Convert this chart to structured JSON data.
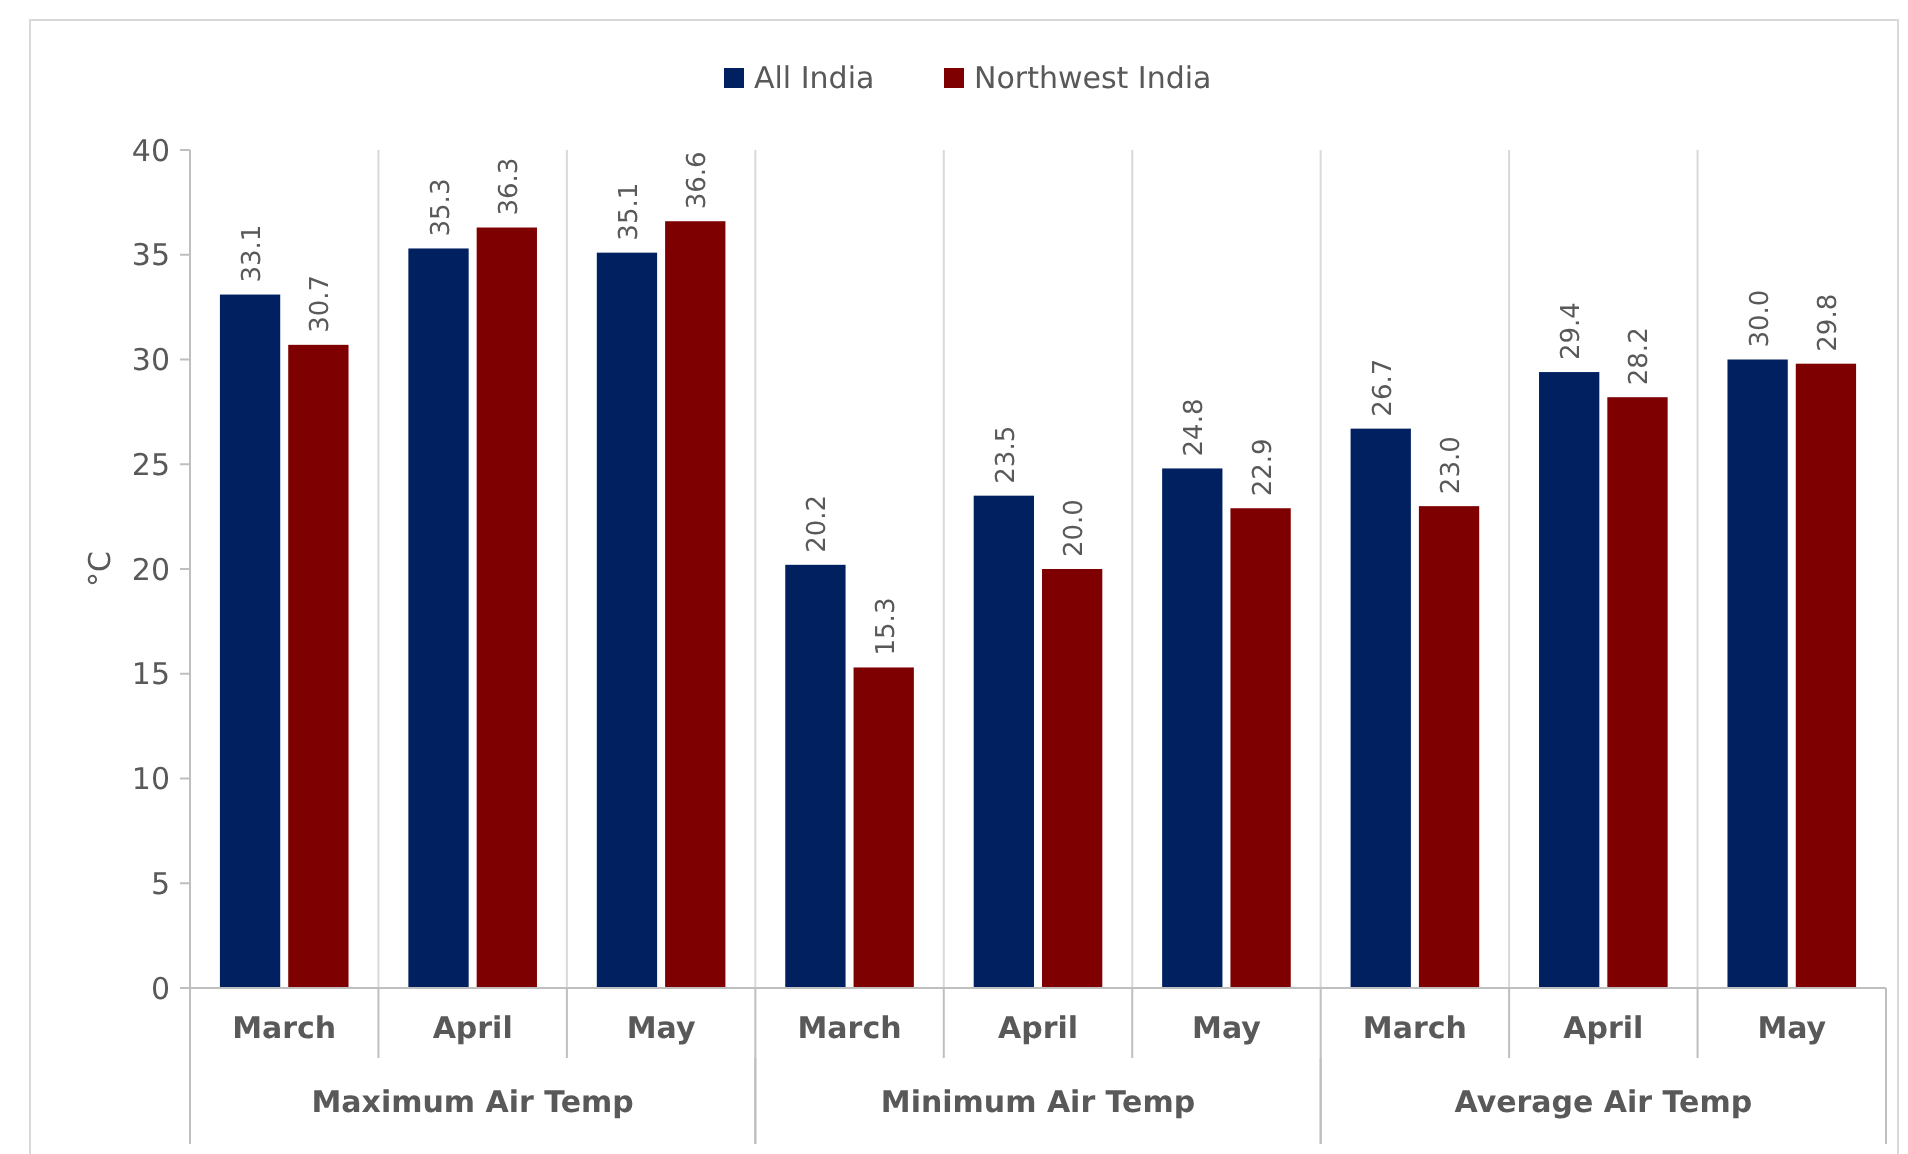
{
  "chart_data": {
    "type": "bar",
    "ylabel": "°C",
    "categories": [
      "March",
      "April",
      "May",
      "March",
      "April",
      "May",
      "March",
      "April",
      "May"
    ],
    "series": [
      {
        "name": "All India",
        "color": "#002060",
        "values": [
          33.1,
          35.3,
          35.1,
          20.2,
          23.5,
          24.8,
          26.7,
          29.4,
          30.0
        ],
        "value_labels": [
          "33.1",
          "35.3",
          "35.1",
          "20.2",
          "23.5",
          "24.8",
          "26.7",
          "29.4",
          "30.0"
        ]
      },
      {
        "name": "Northwest India",
        "color": "#7f0000",
        "values": [
          30.7,
          36.3,
          36.6,
          15.3,
          20.0,
          22.9,
          23.0,
          28.2,
          29.8
        ],
        "value_labels": [
          "30.7",
          "36.3",
          "36.6",
          "15.3",
          "20.0",
          "22.9",
          "23.0",
          "28.2",
          "29.8"
        ]
      }
    ],
    "annotations": [
      "Maximum Air Temp",
      "Minimum Air Temp",
      "Average Air Temp"
    ],
    "ylim": [
      0,
      40
    ],
    "yticks": [
      0,
      5,
      10,
      15,
      20,
      25,
      30,
      35,
      40
    ],
    "legend": "top",
    "grid": false
  }
}
